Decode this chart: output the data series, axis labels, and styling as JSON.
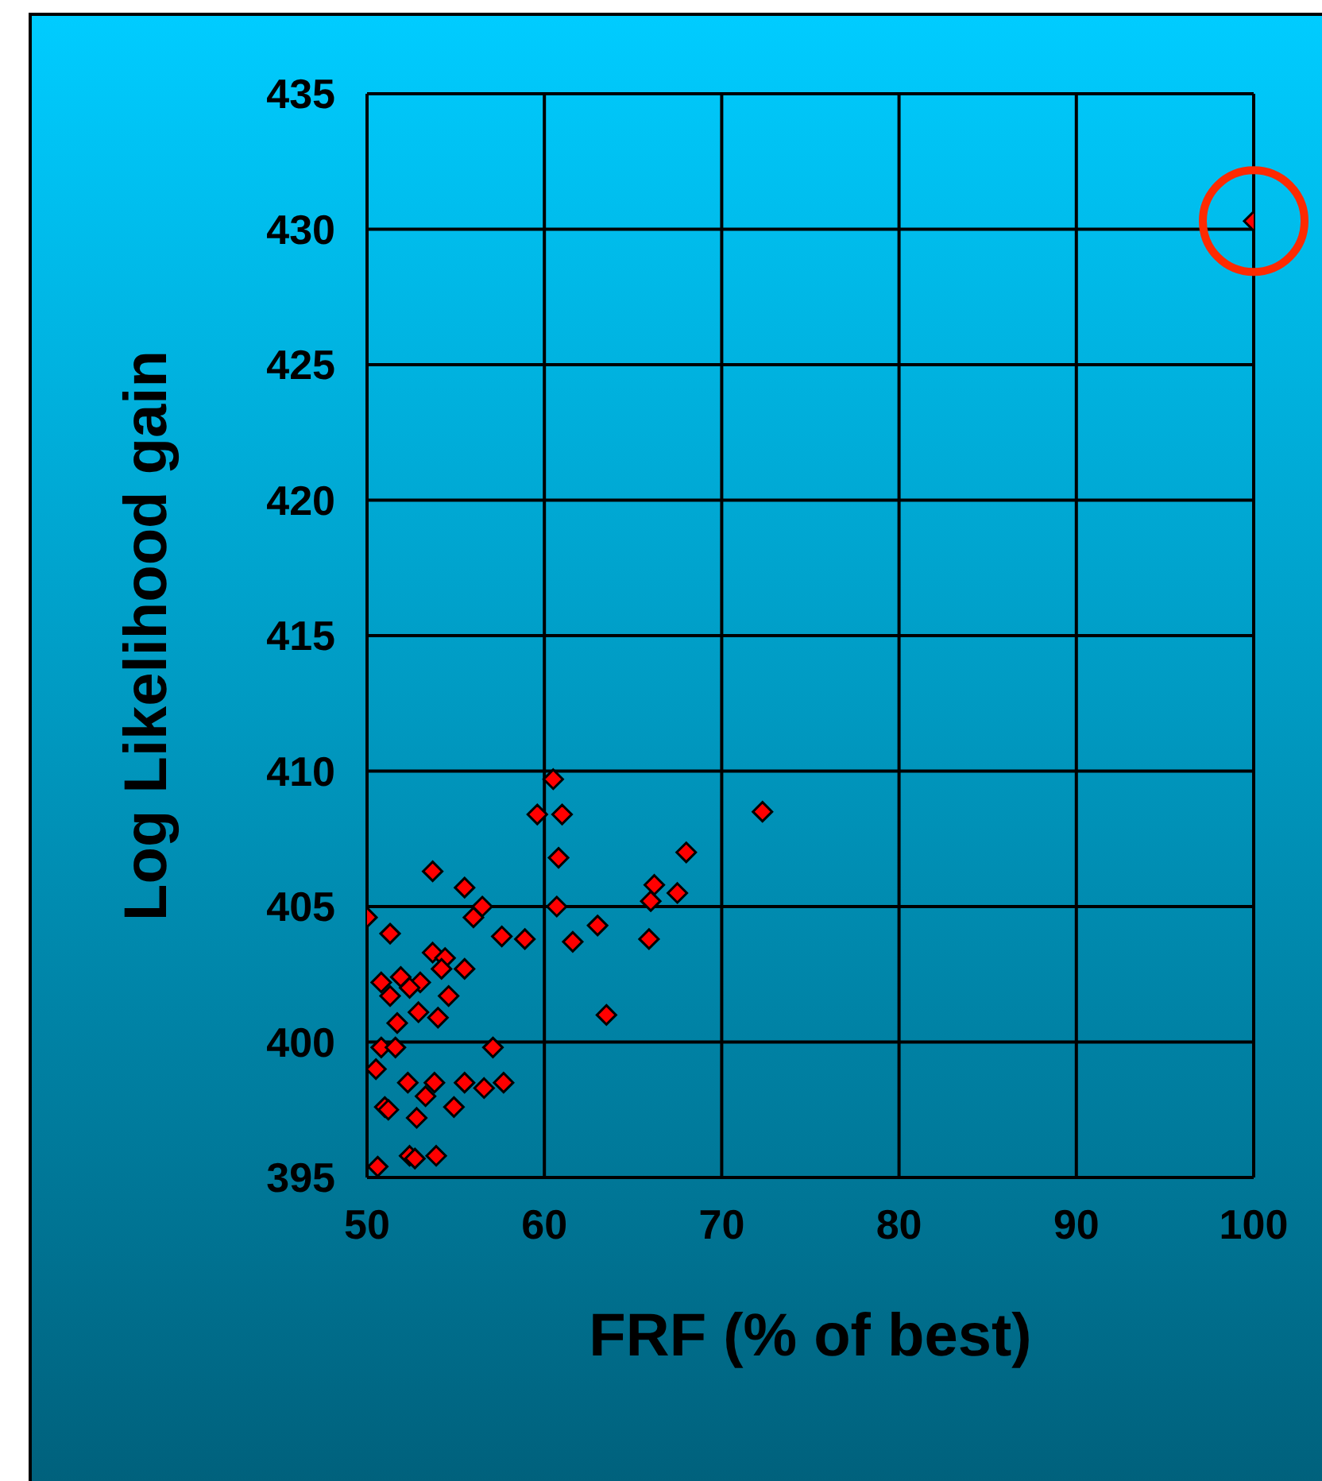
{
  "chart_data": {
    "type": "scatter",
    "xlabel": "FRF (% of best)",
    "ylabel": "Log Likelihood gain",
    "xlim": [
      50,
      100
    ],
    "xticks": [
      50,
      60,
      70,
      80,
      90,
      100
    ],
    "ylim": [
      395,
      435
    ],
    "yticks": [
      395,
      400,
      405,
      410,
      415,
      420,
      425,
      430,
      435
    ],
    "grid": true,
    "marker": "diamond",
    "legend": false,
    "series": [
      {
        "color": "#ff0000",
        "x": [
          50.0,
          53.7,
          55.5,
          56.5,
          56.0,
          51.3,
          57.6,
          58.9,
          53.7,
          54.4,
          54.2,
          55.5,
          50.8,
          51.9,
          53.0,
          52.4,
          54.6,
          51.3,
          52.9,
          51.7,
          54.0,
          50.8,
          51.6,
          57.1,
          50.5,
          52.3,
          53.8,
          55.5,
          57.7,
          56.6,
          51.0,
          51.2,
          53.3,
          54.9,
          52.8,
          52.4,
          52.7,
          53.9,
          50.6,
          60.5,
          59.6,
          61.0,
          60.8,
          60.7,
          63.0,
          61.6,
          66.0,
          66.2,
          65.9,
          63.5,
          67.5,
          68.0,
          72.3,
          100
        ],
        "values": [
          404.6,
          406.3,
          405.7,
          405.0,
          404.6,
          404.0,
          403.9,
          403.8,
          403.3,
          403.1,
          402.7,
          402.7,
          402.2,
          402.4,
          402.2,
          402.0,
          401.7,
          401.7,
          401.1,
          400.7,
          400.9,
          399.8,
          399.8,
          399.8,
          399.0,
          398.5,
          398.5,
          398.5,
          398.5,
          398.3,
          397.6,
          397.5,
          398.0,
          397.6,
          397.2,
          395.8,
          395.7,
          395.8,
          395.4,
          409.7,
          408.4,
          408.4,
          406.8,
          405.0,
          404.3,
          403.7,
          405.2,
          405.8,
          403.8,
          401.0,
          405.5,
          407.0,
          408.5,
          430.3
        ]
      }
    ]
  }
}
